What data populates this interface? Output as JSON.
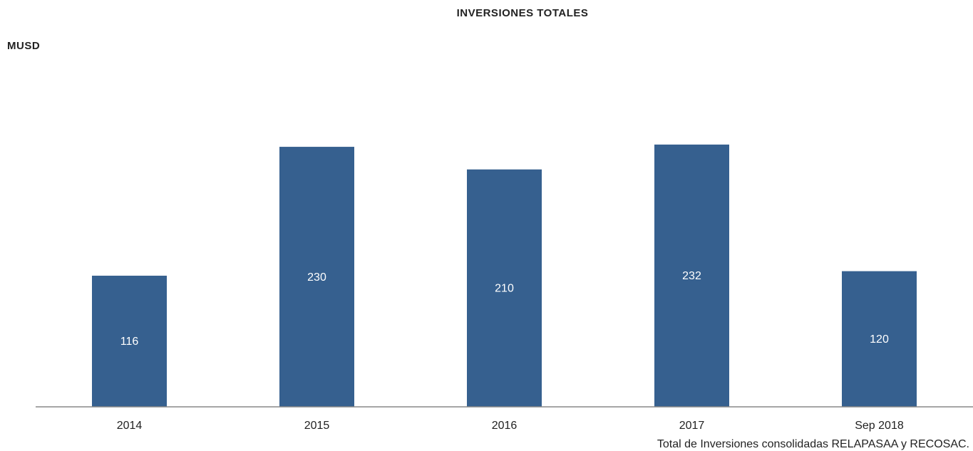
{
  "chart_data": {
    "type": "bar",
    "title": "INVERSIONES TOTALES",
    "y_label": "MUSD",
    "categories": [
      "2014",
      "2015",
      "2016",
      "2017",
      "Sep 2018"
    ],
    "values": [
      116,
      230,
      210,
      232,
      120
    ],
    "color": "#36608f",
    "ylim": [
      0,
      300
    ],
    "note": "Total de Inversiones consolidadas RELAPASAA y RECOSAC."
  }
}
